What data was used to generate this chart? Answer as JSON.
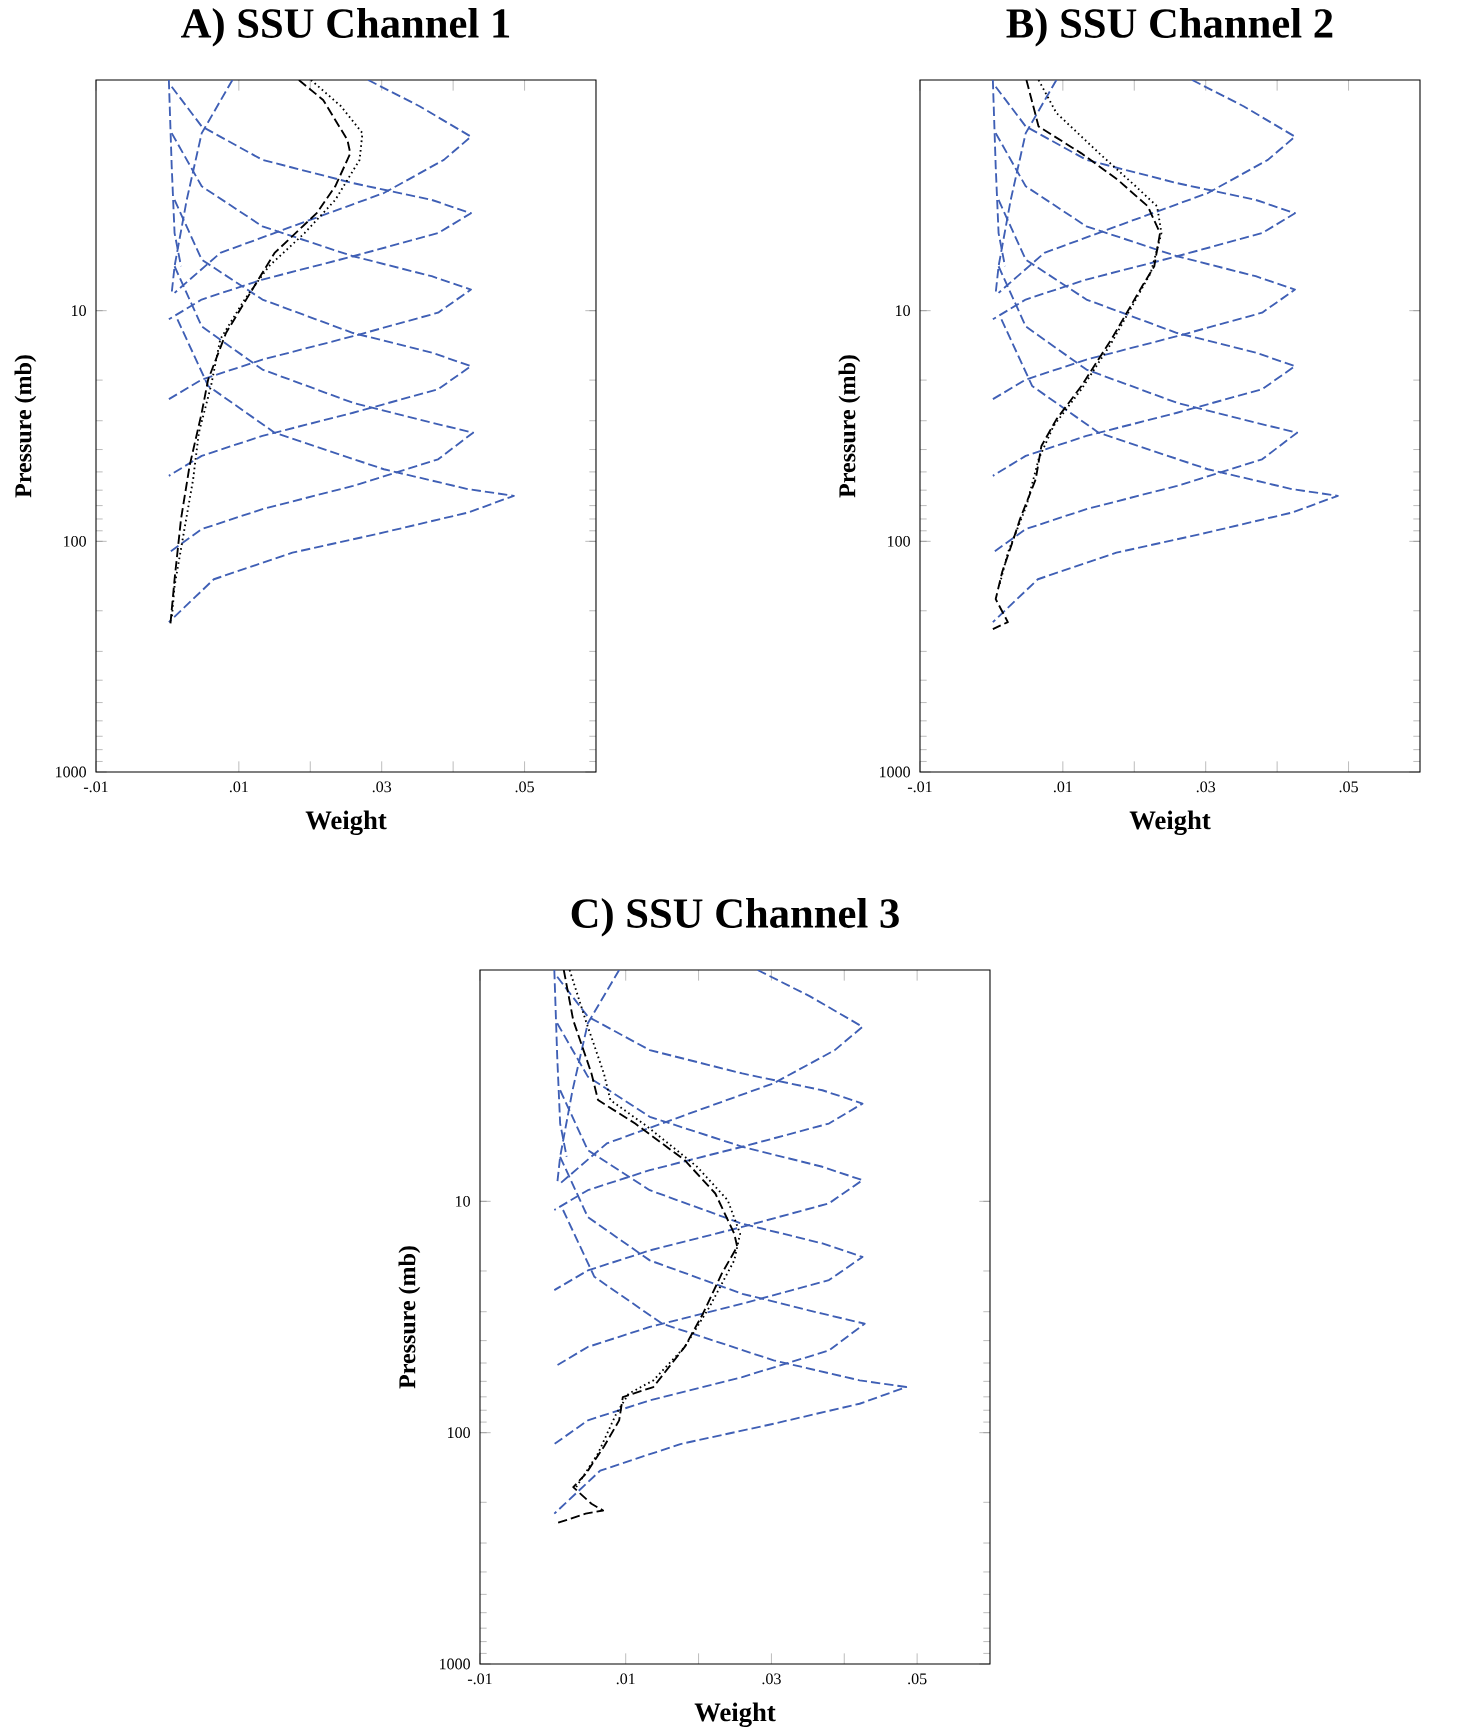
{
  "chart_data": [
    {
      "type": "line",
      "title": "A) SSU Channel 1",
      "xlabel": "Weight",
      "ylabel": "Pressure (mb)",
      "log": "y",
      "xlim": [
        -0.01,
        0.06
      ],
      "xticks": [
        {
          "value": -0.01,
          "label": "-.01"
        },
        {
          "value": 0.01,
          "label": ".01"
        },
        {
          "value": 0.02,
          "label": null
        },
        {
          "value": 0.03,
          "label": ".03"
        },
        {
          "value": 0.04,
          "label": null
        },
        {
          "value": 0.05,
          "label": ".05"
        }
      ],
      "ylim": [
        1000,
        1
      ],
      "yticks": [
        10,
        100,
        1000
      ],
      "series": [
        {
          "color": "#3f5fb5",
          "line_style": "dashed",
          "x": [
            0.0002,
            0.0006,
            0.001,
            0.0019
          ],
          "values": [
            1,
            2.37,
            4.61,
            6.42
          ]
        },
        {
          "color": "#3f5fb5",
          "line_style": "dashed",
          "x": [
            0.0091,
            0.0048,
            0.0027,
            0.001,
            0.0006
          ],
          "values": [
            1,
            1.7,
            3.31,
            6.42,
            8.37
          ]
        },
        {
          "color": "#3f5fb5",
          "line_style": "dashed",
          "x": [
            0.0281,
            0.0353,
            0.0425,
            0.0387,
            0.0303,
            0.0175,
            0.0074,
            0.001
          ],
          "values": [
            1,
            1.3,
            1.76,
            2.22,
            3.09,
            4.31,
            5.62,
            8.37
          ]
        },
        {
          "color": "#3f5fb5",
          "line_style": "dashed",
          "x": [
            0.0006,
            0.0048,
            0.0133,
            0.026,
            0.037,
            0.0425,
            0.0379,
            0.026,
            0.0133,
            0.0048,
            0.0002
          ],
          "values": [
            1.07,
            1.59,
            2.22,
            2.8,
            3.31,
            3.78,
            4.61,
            5.81,
            7.33,
            8.95,
            10.9
          ]
        },
        {
          "color": "#3f5fb5",
          "line_style": "dashed",
          "x": [
            0.0006,
            0.0048,
            0.0133,
            0.026,
            0.037,
            0.0425,
            0.0379,
            0.026,
            0.0133,
            0.0048,
            0.0002
          ],
          "values": [
            1.7,
            2.89,
            4.31,
            5.81,
            7.09,
            8.1,
            10.2,
            12.9,
            16.3,
            19.9,
            24.2
          ]
        },
        {
          "color": "#3f5fb5",
          "line_style": "dashed",
          "x": [
            0.001,
            0.0048,
            0.0133,
            0.026,
            0.037,
            0.0425,
            0.0379,
            0.026,
            0.0133,
            0.0048,
            0.0002
          ],
          "values": [
            3.31,
            6.01,
            8.95,
            12.5,
            15.2,
            17.4,
            21.9,
            27.7,
            34.9,
            42.6,
            52.0
          ]
        },
        {
          "color": "#3f5fb5",
          "line_style": "dashed",
          "x": [
            0.001,
            0.0048,
            0.0133,
            0.026,
            0.037,
            0.0428,
            0.0379,
            0.026,
            0.0133,
            0.0048,
            0.0002
          ],
          "values": [
            6.42,
            11.7,
            18.0,
            25.1,
            30.6,
            33.8,
            44.1,
            57.5,
            72.5,
            88.5,
            112
          ]
        },
        {
          "color": "#3f5fb5",
          "line_style": "dashed",
          "x": [
            0.0014,
            0.0057,
            0.015,
            0.0303,
            0.0421,
            0.0485,
            0.0421,
            0.0303,
            0.0175,
            0.0065,
            0.0002
          ],
          "values": [
            10.9,
            21.2,
            33.8,
            48.7,
            59.4,
            63.5,
            75.0,
            91.5,
            112,
            146,
            224
          ]
        },
        {
          "color": "#000000",
          "line_style": "dashed",
          "x": [
            0.0184,
            0.0218,
            0.0252,
            0.0256,
            0.0235,
            0.0209,
            0.015,
            0.0116,
            0.0082,
            0.0057,
            0.0048,
            0.0031,
            0.0019,
            0.001,
            0.0004
          ],
          "values": [
            1,
            1.22,
            1.82,
            2.08,
            2.89,
            3.78,
            5.62,
            8.37,
            12.5,
            19.9,
            27.7,
            47.1,
            80.1,
            146,
            232
          ]
        },
        {
          "color": "#000000",
          "line_style": "dotted",
          "x": [
            0.0201,
            0.0243,
            0.0273,
            0.0269,
            0.0235,
            0.0192,
            0.0142,
            0.0108,
            0.0074,
            0.0061,
            0.0044,
            0.0036,
            0.0023,
            0.001,
            0.0006
          ],
          "values": [
            1,
            1.3,
            1.7,
            2.22,
            3.31,
            4.61,
            6.42,
            8.95,
            13.3,
            21.2,
            33.8,
            53.8,
            91.5,
            156,
            217
          ]
        }
      ]
    },
    {
      "type": "line",
      "title": "B) SSU Channel 2",
      "xlabel": "Weight",
      "ylabel": "Pressure (mb)",
      "log": "y",
      "xlim": [
        -0.01,
        0.06
      ],
      "xticks": [
        {
          "value": -0.01,
          "label": "-.01"
        },
        {
          "value": 0.01,
          "label": ".01"
        },
        {
          "value": 0.02,
          "label": null
        },
        {
          "value": 0.03,
          "label": ".03"
        },
        {
          "value": 0.04,
          "label": null
        },
        {
          "value": 0.05,
          "label": ".05"
        }
      ],
      "ylim": [
        1000,
        1
      ],
      "yticks": [
        10,
        100,
        1000
      ],
      "series": [
        {
          "color": "#3f5fb5",
          "line_style": "dashed",
          "x": [
            0.0002,
            0.0006,
            0.001,
            0.0019
          ],
          "values": [
            1,
            2.37,
            4.61,
            6.42
          ]
        },
        {
          "color": "#3f5fb5",
          "line_style": "dashed",
          "x": [
            0.0091,
            0.0048,
            0.0027,
            0.001,
            0.0006
          ],
          "values": [
            1,
            1.7,
            3.31,
            6.42,
            8.37
          ]
        },
        {
          "color": "#3f5fb5",
          "line_style": "dashed",
          "x": [
            0.0281,
            0.0353,
            0.0425,
            0.0387,
            0.0303,
            0.0175,
            0.0074,
            0.001
          ],
          "values": [
            1,
            1.3,
            1.76,
            2.22,
            3.09,
            4.31,
            5.62,
            8.37
          ]
        },
        {
          "color": "#3f5fb5",
          "line_style": "dashed",
          "x": [
            0.0006,
            0.0048,
            0.0133,
            0.026,
            0.037,
            0.0425,
            0.0379,
            0.026,
            0.0133,
            0.0048,
            0.0002
          ],
          "values": [
            1.07,
            1.59,
            2.22,
            2.8,
            3.31,
            3.78,
            4.61,
            5.81,
            7.33,
            8.95,
            10.9
          ]
        },
        {
          "color": "#3f5fb5",
          "line_style": "dashed",
          "x": [
            0.0006,
            0.0048,
            0.0133,
            0.026,
            0.037,
            0.0425,
            0.0379,
            0.026,
            0.0133,
            0.0048,
            0.0002
          ],
          "values": [
            1.7,
            2.89,
            4.31,
            5.81,
            7.09,
            8.1,
            10.2,
            12.9,
            16.3,
            19.9,
            24.2
          ]
        },
        {
          "color": "#3f5fb5",
          "line_style": "dashed",
          "x": [
            0.001,
            0.0048,
            0.0133,
            0.026,
            0.037,
            0.0425,
            0.0379,
            0.026,
            0.0133,
            0.0048,
            0.0002
          ],
          "values": [
            3.31,
            6.01,
            8.95,
            12.5,
            15.2,
            17.4,
            21.9,
            27.7,
            34.9,
            42.6,
            52.0
          ]
        },
        {
          "color": "#3f5fb5",
          "line_style": "dashed",
          "x": [
            0.001,
            0.0048,
            0.0133,
            0.026,
            0.037,
            0.0428,
            0.0379,
            0.026,
            0.0133,
            0.0048,
            0.0002
          ],
          "values": [
            6.42,
            11.7,
            18.0,
            25.1,
            30.6,
            33.8,
            44.1,
            57.5,
            72.5,
            88.5,
            112
          ]
        },
        {
          "color": "#3f5fb5",
          "line_style": "dashed",
          "x": [
            0.0014,
            0.0057,
            0.015,
            0.0303,
            0.0421,
            0.0485,
            0.0421,
            0.0303,
            0.0175,
            0.0065,
            0.0002
          ],
          "values": [
            10.9,
            21.2,
            33.8,
            48.7,
            59.4,
            63.5,
            75.0,
            91.5,
            112,
            146,
            224
          ]
        },
        {
          "color": "#000000",
          "line_style": "dashed",
          "x": [
            0.0049,
            0.0066,
            0.0126,
            0.0177,
            0.0219,
            0.0236,
            0.0228,
            0.0211,
            0.0168,
            0.0126,
            0.0091,
            0.007,
            0.0062,
            0.004,
            0.0028,
            0.0015,
            0.0006,
            0.0023,
            0.0002
          ],
          "values": [
            1,
            1.59,
            2.08,
            2.71,
            3.53,
            4.61,
            6.42,
            7.84,
            13.3,
            21.2,
            29.6,
            38.6,
            53.8,
            80.1,
            104,
            136,
            178,
            224,
            240
          ]
        },
        {
          "color": "#000000",
          "line_style": "dotted",
          "x": [
            0.0066,
            0.0091,
            0.0151,
            0.0202,
            0.0232,
            0.0238,
            0.0223,
            0.0168,
            0.0126,
            0.0087,
            0.0066,
            0.0049,
            0.0023,
            0.0011
          ],
          "values": [
            1,
            1.39,
            2.08,
            2.89,
            3.53,
            4.61,
            6.86,
            13.8,
            21.9,
            31.6,
            44.1,
            70.2,
            112,
            156
          ]
        }
      ]
    },
    {
      "type": "line",
      "title": "C) SSU Channel 3",
      "xlabel": "Weight",
      "ylabel": "Pressure (mb)",
      "log": "y",
      "xlim": [
        -0.01,
        0.06
      ],
      "xticks": [
        {
          "value": -0.01,
          "label": "-.01"
        },
        {
          "value": 0.01,
          "label": ".01"
        },
        {
          "value": 0.02,
          "label": null
        },
        {
          "value": 0.03,
          "label": ".03"
        },
        {
          "value": 0.04,
          "label": null
        },
        {
          "value": 0.05,
          "label": ".05"
        }
      ],
      "ylim": [
        1000,
        1
      ],
      "yticks": [
        10,
        100,
        1000
      ],
      "series": [
        {
          "color": "#3f5fb5",
          "line_style": "dashed",
          "x": [
            0.0002,
            0.0006,
            0.001,
            0.0019
          ],
          "values": [
            1,
            2.37,
            4.61,
            6.42
          ]
        },
        {
          "color": "#3f5fb5",
          "line_style": "dashed",
          "x": [
            0.0091,
            0.0048,
            0.0027,
            0.001,
            0.0006
          ],
          "values": [
            1,
            1.7,
            3.31,
            6.42,
            8.37
          ]
        },
        {
          "color": "#3f5fb5",
          "line_style": "dashed",
          "x": [
            0.0281,
            0.0353,
            0.0425,
            0.0387,
            0.0303,
            0.0175,
            0.0074,
            0.001
          ],
          "values": [
            1,
            1.3,
            1.76,
            2.22,
            3.09,
            4.31,
            5.62,
            8.37
          ]
        },
        {
          "color": "#3f5fb5",
          "line_style": "dashed",
          "x": [
            0.0006,
            0.0048,
            0.0133,
            0.026,
            0.037,
            0.0425,
            0.0379,
            0.026,
            0.0133,
            0.0048,
            0.0002
          ],
          "values": [
            1.07,
            1.59,
            2.22,
            2.8,
            3.31,
            3.78,
            4.61,
            5.81,
            7.33,
            8.95,
            10.9
          ]
        },
        {
          "color": "#3f5fb5",
          "line_style": "dashed",
          "x": [
            0.0006,
            0.0048,
            0.0133,
            0.026,
            0.037,
            0.0425,
            0.0379,
            0.026,
            0.0133,
            0.0048,
            0.0002
          ],
          "values": [
            1.7,
            2.89,
            4.31,
            5.81,
            7.09,
            8.1,
            10.2,
            12.9,
            16.3,
            19.9,
            24.2
          ]
        },
        {
          "color": "#3f5fb5",
          "line_style": "dashed",
          "x": [
            0.001,
            0.0048,
            0.0133,
            0.026,
            0.037,
            0.0425,
            0.0379,
            0.026,
            0.0133,
            0.0048,
            0.0002
          ],
          "values": [
            3.31,
            6.01,
            8.95,
            12.5,
            15.2,
            17.4,
            21.9,
            27.7,
            34.9,
            42.6,
            52.0
          ]
        },
        {
          "color": "#3f5fb5",
          "line_style": "dashed",
          "x": [
            0.001,
            0.0048,
            0.0133,
            0.026,
            0.037,
            0.0428,
            0.0379,
            0.026,
            0.0133,
            0.0048,
            0.0002
          ],
          "values": [
            6.42,
            11.7,
            18.0,
            25.1,
            30.6,
            33.8,
            44.1,
            57.5,
            72.5,
            88.5,
            112
          ]
        },
        {
          "color": "#3f5fb5",
          "line_style": "dashed",
          "x": [
            0.0014,
            0.0057,
            0.015,
            0.0303,
            0.0421,
            0.0485,
            0.0421,
            0.0303,
            0.0175,
            0.0065,
            0.0002
          ],
          "values": [
            10.9,
            21.2,
            33.8,
            48.7,
            59.4,
            63.5,
            75.0,
            91.5,
            112,
            146,
            224
          ]
        },
        {
          "color": "#000000",
          "line_style": "dashed",
          "x": [
            0.0015,
            0.0028,
            0.0053,
            0.0062,
            0.0113,
            0.0181,
            0.0223,
            0.0249,
            0.0253,
            0.0232,
            0.0206,
            0.0181,
            0.0138,
            0.0096,
            0.0091,
            0.007,
            0.0045,
            0.0028,
            0.0053,
            0.0069,
            0.0045,
            0.0002
          ],
          "values": [
            1,
            1.65,
            2.8,
            3.65,
            4.61,
            6.64,
            9.25,
            13.8,
            15.7,
            20.5,
            30.6,
            42.6,
            63.5,
            70.2,
            88.5,
            115,
            151,
            172,
            203,
            217,
            224,
            248
          ]
        },
        {
          "color": "#000000",
          "line_style": "dotted",
          "x": [
            0.0023,
            0.0045,
            0.007,
            0.0079,
            0.013,
            0.0198,
            0.024,
            0.0257,
            0.0249,
            0.0215,
            0.0181,
            0.0138,
            0.0104,
            0.0087,
            0.0062,
            0.0032
          ],
          "values": [
            1,
            1.65,
            2.8,
            3.65,
            4.76,
            7.09,
            9.89,
            13.8,
            18.0,
            28.6,
            42.6,
            59.4,
            67.9,
            82.8,
            123,
            172
          ]
        }
      ]
    }
  ]
}
